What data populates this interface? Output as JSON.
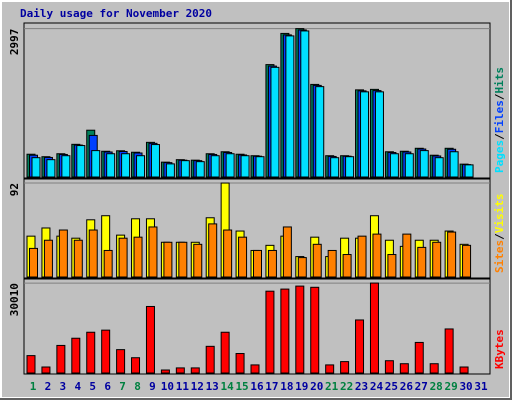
{
  "title": "Daily usage for November 2020",
  "categories": [
    "1",
    "2",
    "3",
    "4",
    "5",
    "6",
    "7",
    "8",
    "9",
    "10",
    "11",
    "12",
    "13",
    "14",
    "15",
    "16",
    "17",
    "18",
    "19",
    "20",
    "21",
    "22",
    "23",
    "24",
    "25",
    "26",
    "27",
    "28",
    "29",
    "30",
    "31"
  ],
  "category_label_colors": [
    "#008040",
    "#0000a0",
    "#0000a0",
    "#0000a0",
    "#0000a0",
    "#0000a0",
    "#008040",
    "#008040",
    "#0000a0",
    "#0000a0",
    "#0000a0",
    "#0000a0",
    "#0000a0",
    "#008040",
    "#008040",
    "#0000a0",
    "#0000a0",
    "#0000a0",
    "#0000a0",
    "#0000a0",
    "#008040",
    "#008040",
    "#0000a0",
    "#0000a0",
    "#0000a0",
    "#0000a0",
    "#0000a0",
    "#008040",
    "#008040",
    "#0000a0",
    "#0000a0"
  ],
  "legend_separator": "/",
  "chart_data": [
    {
      "type": "bar",
      "ylim": [
        0,
        3070
      ],
      "yticks": [
        2997
      ],
      "series": [
        {
          "name": "Hits",
          "color": "#00805c",
          "values": [
            460,
            410,
            470,
            660,
            945,
            520,
            530,
            500,
            700,
            300,
            350,
            340,
            470,
            510,
            460,
            430,
            2270,
            2900,
            2997,
            1870,
            430,
            430,
            1760,
            1770,
            510,
            520,
            580,
            440,
            580,
            260,
            0
          ]
        },
        {
          "name": "Files",
          "color": "#0040ff",
          "values": [
            440,
            395,
            455,
            645,
            840,
            505,
            515,
            485,
            680,
            290,
            340,
            330,
            455,
            495,
            445,
            420,
            2240,
            2870,
            2970,
            1850,
            415,
            420,
            1740,
            1745,
            495,
            505,
            565,
            425,
            560,
            250,
            0
          ]
        },
        {
          "name": "Pages",
          "color": "#00e0ff",
          "values": [
            390,
            350,
            430,
            635,
            533,
            470,
            470,
            430,
            655,
            265,
            330,
            310,
            430,
            470,
            430,
            410,
            2215,
            2850,
            2950,
            1825,
            390,
            410,
            1720,
            1720,
            470,
            470,
            533,
            390,
            510,
            245,
            0
          ]
        }
      ]
    },
    {
      "type": "bar",
      "ylim": [
        0,
        94
      ],
      "yticks": [
        92
      ],
      "series": [
        {
          "name": "Visits",
          "color": "#ffff00",
          "values": [
            40,
            48,
            40,
            38,
            56,
            60,
            41,
            57,
            57,
            34,
            34,
            34,
            58,
            92,
            45,
            26,
            31,
            40,
            20,
            39,
            20,
            38,
            38,
            60,
            36,
            30,
            36,
            36,
            45,
            32,
            0
          ]
        },
        {
          "name": "Sites",
          "color": "#ff8000",
          "values": [
            28,
            36,
            46,
            36,
            46,
            26,
            38,
            39,
            49,
            34,
            34,
            32,
            52,
            46,
            39,
            26,
            26,
            49,
            19,
            32,
            26,
            22,
            40,
            42,
            22,
            42,
            29,
            34,
            44,
            31,
            0
          ]
        }
      ]
    },
    {
      "type": "bar",
      "ylim": [
        0,
        30700
      ],
      "yticks": [
        30010
      ],
      "series": [
        {
          "name": "KBytes",
          "color": "#ff0000",
          "values": [
            5800,
            2000,
            9200,
            11600,
            13600,
            14300,
            7800,
            5100,
            22200,
            1000,
            1700,
            1700,
            8900,
            13600,
            6500,
            2700,
            27300,
            28000,
            29000,
            28600,
            2700,
            3800,
            17700,
            30010,
            4100,
            3100,
            10200,
            3100,
            14700,
            2000,
            0
          ]
        }
      ]
    }
  ]
}
